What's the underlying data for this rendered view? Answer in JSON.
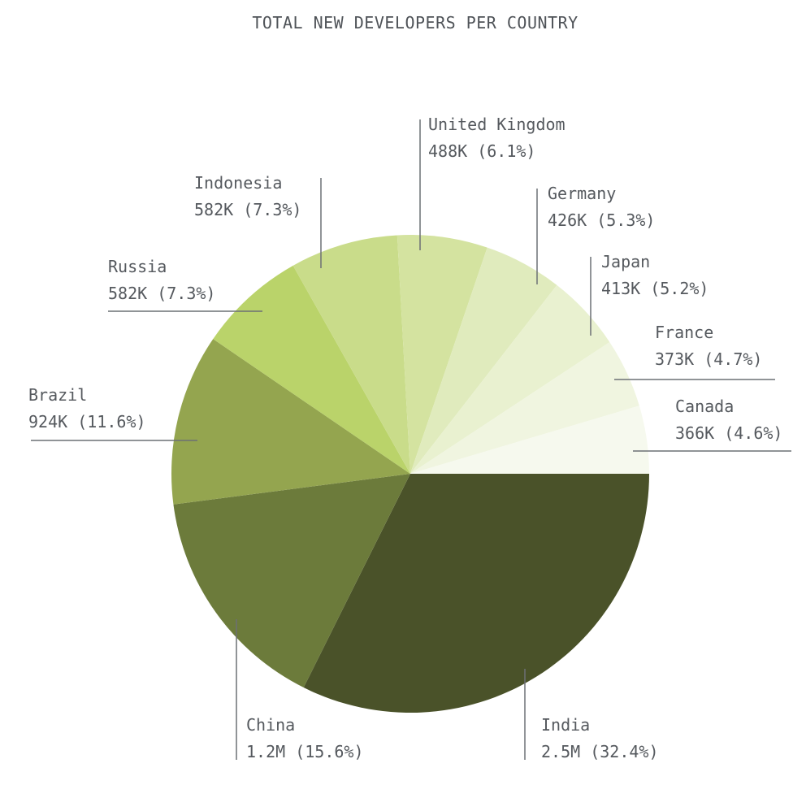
{
  "chart_data": {
    "type": "pie",
    "title": "TOTAL NEW DEVELOPERS PER COUNTRY",
    "start_angle_note": "slices begin at 3 o'clock and proceed clockwise",
    "slices": [
      {
        "name": "India",
        "value_label": "2.5M",
        "pct_label": "32.4%",
        "percent": 32.4,
        "color": "#4a5229"
      },
      {
        "name": "China",
        "value_label": "1.2M",
        "pct_label": "15.6%",
        "percent": 15.6,
        "color": "#6c7b3b"
      },
      {
        "name": "Brazil",
        "value_label": "924K",
        "pct_label": "11.6%",
        "percent": 11.6,
        "color": "#94a54f"
      },
      {
        "name": "Russia",
        "value_label": "582K",
        "pct_label": "7.3%",
        "percent": 7.3,
        "color": "#bad36a"
      },
      {
        "name": "Indonesia",
        "value_label": "582K",
        "pct_label": "7.3%",
        "percent": 7.3,
        "color": "#c9dc8a"
      },
      {
        "name": "United Kingdom",
        "value_label": "488K",
        "pct_label": "6.1%",
        "percent": 6.1,
        "color": "#d4e3a0"
      },
      {
        "name": "Germany",
        "value_label": "426K",
        "pct_label": "5.3%",
        "percent": 5.3,
        "color": "#e0ebbd"
      },
      {
        "name": "Japan",
        "value_label": "413K",
        "pct_label": "5.2%",
        "percent": 5.2,
        "color": "#e9f1d0"
      },
      {
        "name": "France",
        "value_label": "373K",
        "pct_label": "4.7%",
        "percent": 4.7,
        "color": "#f0f5e0"
      },
      {
        "name": "Canada",
        "value_label": "366K",
        "pct_label": "4.6%",
        "percent": 4.6,
        "color": "#f6f9ee"
      }
    ]
  }
}
